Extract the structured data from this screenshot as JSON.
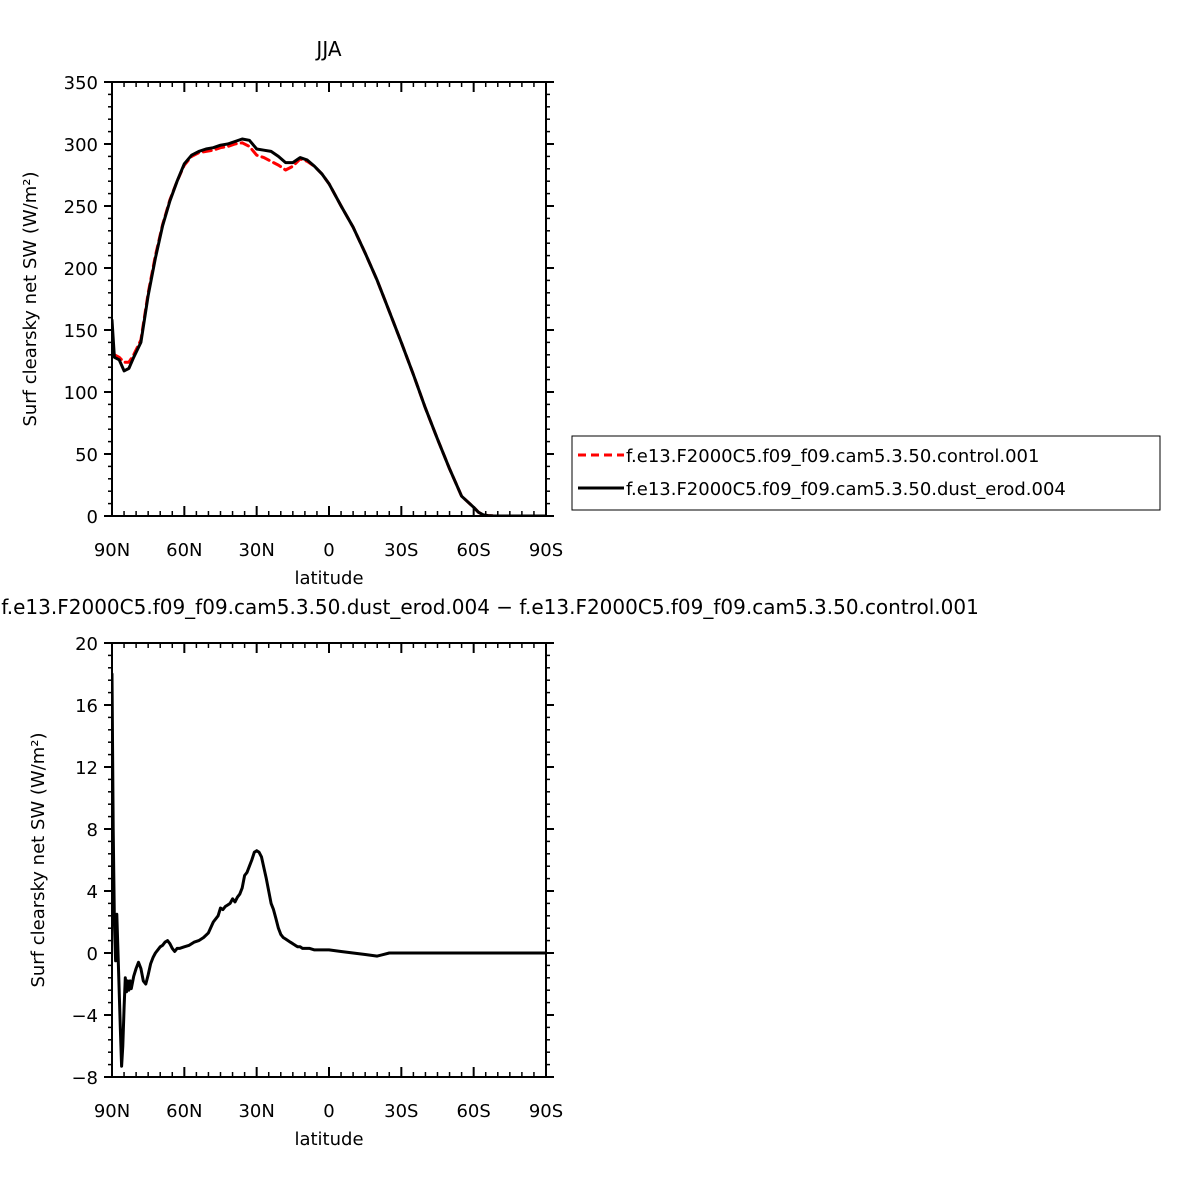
{
  "chart_data": [
    {
      "type": "line",
      "title": "JJA",
      "xlabel": "latitude",
      "ylabel": "Surf clearsky net SW (W/m²)",
      "xlim": [
        90,
        -90
      ],
      "ylim": [
        0,
        350
      ],
      "xticks": [
        {
          "value": 90,
          "label": "90N"
        },
        {
          "value": 60,
          "label": "60N"
        },
        {
          "value": 30,
          "label": "30N"
        },
        {
          "value": 0,
          "label": "0"
        },
        {
          "value": -30,
          "label": "30S"
        },
        {
          "value": -60,
          "label": "60S"
        },
        {
          "value": -90,
          "label": "90S"
        }
      ],
      "yticks": [
        {
          "value": 0,
          "label": "0"
        },
        {
          "value": 50,
          "label": "50"
        },
        {
          "value": 100,
          "label": "100"
        },
        {
          "value": 150,
          "label": "150"
        },
        {
          "value": 200,
          "label": "200"
        },
        {
          "value": 250,
          "label": "250"
        },
        {
          "value": 300,
          "label": "300"
        },
        {
          "value": 350,
          "label": "350"
        }
      ],
      "legend_position": "right",
      "series": [
        {
          "name": "f.e13.F2000C5.f09_f09.cam5.3.50.control.001",
          "color": "#ff0000",
          "dash": "dashed",
          "x": [
            90,
            89,
            87,
            85,
            83,
            81,
            78,
            75,
            72,
            69,
            66,
            63,
            60,
            57,
            54,
            51,
            48,
            45,
            42,
            39,
            36,
            33,
            30,
            27,
            24,
            21,
            18,
            15,
            12,
            9,
            6,
            3,
            0,
            -5,
            -10,
            -15,
            -20,
            -25,
            -30,
            -35,
            -40,
            -45,
            -50,
            -55,
            -60,
            -62,
            -64,
            -66,
            -68,
            -70,
            -75,
            -80,
            -85,
            -90
          ],
          "y": [
            140,
            130,
            128,
            124,
            124,
            130,
            142,
            180,
            210,
            235,
            255,
            270,
            283,
            290,
            293,
            294,
            295,
            297,
            298,
            300,
            301,
            298,
            291,
            289,
            286,
            283,
            279,
            282,
            288,
            286,
            282,
            276,
            268,
            250,
            233,
            212,
            190,
            165,
            140,
            114,
            87,
            62,
            38,
            16,
            7,
            3,
            1,
            0.3,
            0.1,
            0,
            0,
            0,
            0,
            0
          ]
        },
        {
          "name": "f.e13.F2000C5.f09_f09.cam5.3.50.dust_erod.004",
          "color": "#000000",
          "dash": "solid",
          "x": [
            90,
            89,
            87,
            85,
            83,
            81,
            78,
            75,
            72,
            69,
            66,
            63,
            60,
            57,
            54,
            51,
            48,
            45,
            42,
            39,
            36,
            33,
            30,
            27,
            24,
            21,
            18,
            15,
            12,
            9,
            6,
            3,
            0,
            -5,
            -10,
            -15,
            -20,
            -25,
            -30,
            -35,
            -40,
            -45,
            -50,
            -55,
            -60,
            -62,
            -64,
            -66,
            -68,
            -70,
            -75,
            -80,
            -85,
            -90
          ],
          "y": [
            158,
            128,
            126,
            117,
            119,
            128,
            140,
            178,
            208,
            234,
            254,
            270,
            284,
            291,
            294,
            296,
            297,
            299,
            300,
            302,
            304,
            303,
            296,
            295,
            294,
            290,
            285,
            285,
            289,
            287,
            282,
            276,
            268,
            250,
            233,
            212,
            190,
            165,
            140,
            114,
            87,
            62,
            38,
            16,
            7,
            3,
            1,
            0.3,
            0.1,
            0,
            0,
            0,
            0,
            0
          ]
        }
      ]
    },
    {
      "type": "line",
      "title": "f.e13.F2000C5.f09_f09.cam5.3.50.dust_erod.004 − f.e13.F2000C5.f09_f09.cam5.3.50.control.001",
      "xlabel": "latitude",
      "ylabel": "Surf clearsky net SW (W/m²)",
      "xlim": [
        90,
        -90
      ],
      "ylim": [
        -8,
        20
      ],
      "xticks": [
        {
          "value": 90,
          "label": "90N"
        },
        {
          "value": 60,
          "label": "60N"
        },
        {
          "value": 30,
          "label": "30N"
        },
        {
          "value": 0,
          "label": "0"
        },
        {
          "value": -30,
          "label": "30S"
        },
        {
          "value": -60,
          "label": "60S"
        },
        {
          "value": -90,
          "label": "90S"
        }
      ],
      "yticks": [
        {
          "value": -8,
          "label": "−8"
        },
        {
          "value": -4,
          "label": "−4"
        },
        {
          "value": 0,
          "label": "0"
        },
        {
          "value": 4,
          "label": "4"
        },
        {
          "value": 8,
          "label": "8"
        },
        {
          "value": 12,
          "label": "12"
        },
        {
          "value": 16,
          "label": "16"
        },
        {
          "value": 20,
          "label": "20"
        }
      ],
      "series": [
        {
          "name": "difference",
          "color": "#000000",
          "dash": "solid",
          "x": [
            90,
            89.5,
            89,
            88.5,
            88,
            87.3,
            86.5,
            86,
            85.5,
            85,
            84.5,
            84,
            83.5,
            83,
            82.5,
            82,
            81,
            80,
            79,
            78,
            77,
            76,
            75,
            74,
            73,
            72,
            71,
            70,
            69,
            68,
            67,
            66,
            65,
            64,
            63,
            62,
            60,
            58,
            56,
            54,
            52,
            50,
            48,
            46,
            45,
            44,
            43,
            42,
            41,
            40,
            39,
            38,
            37,
            36,
            35,
            34,
            33,
            32,
            31,
            30,
            29,
            28,
            27,
            26,
            25,
            24,
            23,
            22,
            21,
            20,
            19,
            18,
            17,
            16,
            15,
            14,
            13,
            12,
            11,
            10,
            9,
            8,
            6,
            4,
            2,
            0,
            -5,
            -10,
            -15,
            -20,
            -25,
            -30,
            -35,
            -40,
            -45,
            -50,
            -55,
            -60,
            -65,
            -70,
            -75,
            -80,
            -85,
            -90
          ],
          "y": [
            18,
            8,
            2,
            -0.5,
            2.5,
            -1,
            -5,
            -7.3,
            -6,
            -3.5,
            -1.6,
            -2.5,
            -1.8,
            -2.4,
            -1.8,
            -2.3,
            -1.5,
            -1,
            -0.6,
            -1,
            -1.8,
            -2,
            -1.4,
            -0.7,
            -0.3,
            0,
            0.2,
            0.4,
            0.5,
            0.7,
            0.8,
            0.6,
            0.3,
            0.1,
            0.3,
            0.3,
            0.4,
            0.5,
            0.7,
            0.8,
            1,
            1.3,
            2,
            2.4,
            2.9,
            2.8,
            3,
            3.1,
            3.2,
            3.5,
            3.3,
            3.6,
            3.8,
            4.2,
            5,
            5.2,
            5.6,
            6,
            6.5,
            6.6,
            6.5,
            6.2,
            5.5,
            4.8,
            4,
            3.2,
            2.8,
            2.2,
            1.6,
            1.2,
            1,
            0.9,
            0.8,
            0.7,
            0.6,
            0.5,
            0.4,
            0.4,
            0.3,
            0.3,
            0.3,
            0.3,
            0.2,
            0.2,
            0.2,
            0.2,
            0.1,
            0,
            -0.1,
            -0.2,
            0,
            0,
            0,
            0,
            0,
            0,
            0,
            0,
            0,
            0,
            0,
            0,
            0,
            0
          ]
        }
      ]
    }
  ]
}
